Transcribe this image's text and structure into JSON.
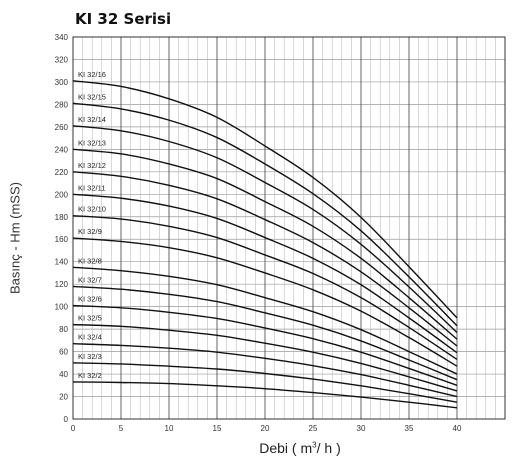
{
  "title": "KI 32 Serisi",
  "chart_data": {
    "type": "line",
    "title": "KI 32 Serisi",
    "xlabel": "Debi ( m³/ h )",
    "xlabel_parts": {
      "pre": "Debi ( m",
      "sup": "3",
      "post": "/ h )"
    },
    "ylabel": "Basınç - Hm (mSS)",
    "xlim": [
      0,
      45
    ],
    "ylim": [
      0,
      340
    ],
    "xticks": [
      0,
      5,
      10,
      15,
      20,
      25,
      30,
      35,
      40
    ],
    "yticks": [
      0,
      20,
      40,
      60,
      80,
      100,
      120,
      140,
      160,
      180,
      200,
      220,
      240,
      260,
      280,
      300,
      320,
      340
    ],
    "grid": true,
    "series": [
      {
        "name": "KI 32/2",
        "x": [
          0,
          5,
          10,
          15,
          20,
          25,
          30,
          35,
          40
        ],
        "values": [
          33,
          32.5,
          31.5,
          29.5,
          27,
          23.5,
          19.5,
          15,
          10
        ]
      },
      {
        "name": "KI 32/3",
        "x": [
          0,
          5,
          10,
          15,
          20,
          25,
          30,
          35,
          40
        ],
        "values": [
          50,
          49,
          47,
          44.5,
          40.5,
          35.5,
          29.5,
          22.5,
          15
        ]
      },
      {
        "name": "KI 32/4",
        "x": [
          0,
          5,
          10,
          15,
          20,
          25,
          30,
          35,
          40
        ],
        "values": [
          67,
          65.5,
          63,
          59.5,
          54,
          47.5,
          39.5,
          30,
          20
        ]
      },
      {
        "name": "KI 32/5",
        "x": [
          0,
          5,
          10,
          15,
          20,
          25,
          30,
          35,
          40
        ],
        "values": [
          84,
          82.5,
          79,
          74.5,
          67.5,
          59.5,
          49.5,
          37.5,
          25
        ]
      },
      {
        "name": "KI 32/6",
        "x": [
          0,
          5,
          10,
          15,
          20,
          25,
          30,
          35,
          40
        ],
        "values": [
          101,
          99,
          95,
          89.5,
          81,
          71.5,
          59.5,
          45,
          30
        ]
      },
      {
        "name": "KI 32/7",
        "x": [
          0,
          5,
          10,
          15,
          20,
          25,
          30,
          35,
          40
        ],
        "values": [
          118,
          115.5,
          111,
          104.5,
          94.5,
          83.5,
          69.5,
          52.5,
          35
        ]
      },
      {
        "name": "KI 32/8",
        "x": [
          0,
          5,
          10,
          15,
          20,
          25,
          30,
          35,
          40
        ],
        "values": [
          135,
          132,
          127,
          119.5,
          108,
          95.5,
          79.5,
          60,
          40
        ]
      },
      {
        "name": "KI 32/9",
        "x": [
          0,
          5,
          10,
          15,
          20,
          25,
          30,
          35,
          40
        ],
        "values": [
          161,
          158,
          152.5,
          143.5,
          130,
          115,
          96,
          72.5,
          47
        ]
      },
      {
        "name": "KI 32/10",
        "x": [
          0,
          5,
          10,
          15,
          20,
          25,
          30,
          35,
          40
        ],
        "values": [
          181,
          178,
          171.5,
          161.5,
          146,
          129.5,
          108,
          81.5,
          53
        ]
      },
      {
        "name": "KI 32/11",
        "x": [
          0,
          5,
          10,
          15,
          20,
          25,
          30,
          35,
          40
        ],
        "values": [
          200,
          196.5,
          189.5,
          178.5,
          161.5,
          143,
          119.5,
          90,
          59
        ]
      },
      {
        "name": "KI 32/12",
        "x": [
          0,
          5,
          10,
          15,
          20,
          25,
          30,
          35,
          40
        ],
        "values": [
          220,
          216,
          208,
          196,
          177.5,
          157,
          131,
          99,
          65
        ]
      },
      {
        "name": "KI 32/13",
        "x": [
          0,
          5,
          10,
          15,
          20,
          25,
          30,
          35,
          40
        ],
        "values": [
          240,
          236,
          227,
          214,
          193.5,
          171.5,
          143,
          108,
          71
        ]
      },
      {
        "name": "KI 32/14",
        "x": [
          0,
          5,
          10,
          15,
          20,
          25,
          30,
          35,
          40
        ],
        "values": [
          261,
          256.5,
          247,
          232.5,
          210.5,
          186.5,
          155.5,
          117.5,
          77
        ]
      },
      {
        "name": "KI 32/15",
        "x": [
          0,
          5,
          10,
          15,
          20,
          25,
          30,
          35,
          40
        ],
        "values": [
          281,
          276,
          266,
          250.5,
          227,
          200.5,
          167.5,
          126.5,
          83
        ]
      },
      {
        "name": "KI 32/16",
        "x": [
          0,
          5,
          10,
          15,
          20,
          25,
          30,
          35,
          40
        ],
        "values": [
          301,
          296,
          285,
          268.5,
          243,
          215,
          179.5,
          135.5,
          90
        ]
      }
    ]
  }
}
